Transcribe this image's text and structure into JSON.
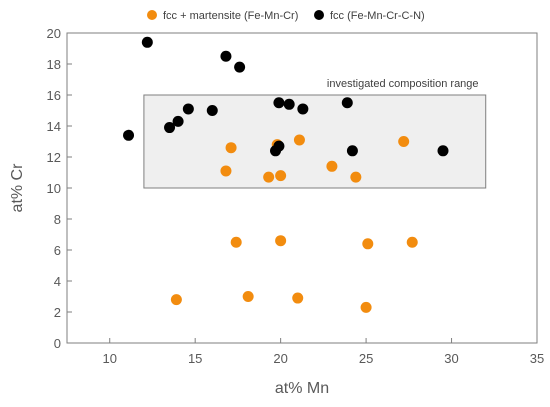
{
  "chart_data": {
    "type": "scatter",
    "xlabel": "at% Mn",
    "ylabel": "at% Cr",
    "xlim": [
      7.5,
      35
    ],
    "ylim": [
      0,
      20
    ],
    "xticks": [
      10,
      15,
      20,
      25,
      30,
      35
    ],
    "yticks": [
      0,
      2,
      4,
      6,
      8,
      10,
      12,
      14,
      16,
      18,
      20
    ],
    "grid": false,
    "legend_position": "top",
    "series": [
      {
        "name": "fcc + martensite (Fe-Mn-Cr)",
        "color": "#F28C0F",
        "points": [
          [
            13.9,
            2.8
          ],
          [
            18.1,
            3.0
          ],
          [
            21.0,
            2.9
          ],
          [
            25.0,
            2.3
          ],
          [
            17.4,
            6.5
          ],
          [
            20.0,
            6.6
          ],
          [
            25.1,
            6.4
          ],
          [
            27.7,
            6.5
          ],
          [
            16.8,
            11.1
          ],
          [
            19.3,
            10.7
          ],
          [
            20.0,
            10.8
          ],
          [
            23.0,
            11.4
          ],
          [
            24.4,
            10.7
          ],
          [
            17.1,
            12.6
          ],
          [
            19.8,
            12.8
          ],
          [
            21.1,
            13.1
          ],
          [
            27.2,
            13.0
          ]
        ]
      },
      {
        "name": "fcc (Fe-Mn-Cr-C-N)",
        "color": "#000000",
        "points": [
          [
            12.2,
            19.4
          ],
          [
            16.8,
            18.5
          ],
          [
            17.6,
            17.8
          ],
          [
            11.1,
            13.4
          ],
          [
            13.5,
            13.9
          ],
          [
            14.0,
            14.3
          ],
          [
            14.6,
            15.1
          ],
          [
            16.0,
            15.0
          ],
          [
            19.9,
            15.5
          ],
          [
            20.5,
            15.4
          ],
          [
            21.3,
            15.1
          ],
          [
            23.9,
            15.5
          ],
          [
            19.7,
            12.4
          ],
          [
            19.9,
            12.7
          ],
          [
            24.2,
            12.4
          ],
          [
            29.5,
            12.4
          ]
        ]
      }
    ],
    "annotations": [
      {
        "type": "rectangle",
        "label": "investigated composition range",
        "x0": 12,
        "x1": 32,
        "y0": 10,
        "y1": 16
      }
    ]
  }
}
